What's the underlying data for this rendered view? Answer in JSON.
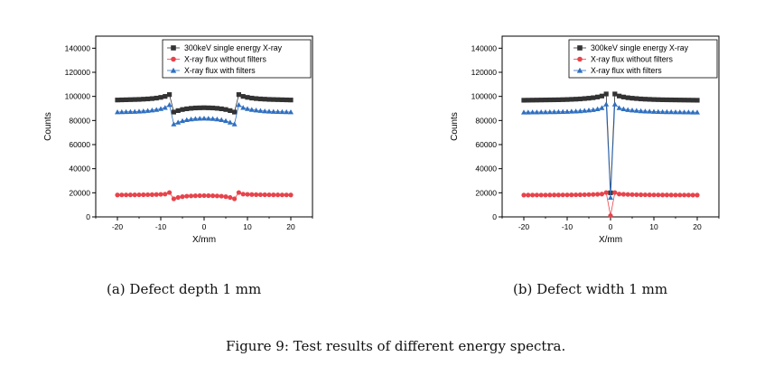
{
  "figure": {
    "caption": "Figure 9: Test results of different energy spectra."
  },
  "panels": {
    "a": {
      "caption": "(a) Defect depth 1 mm"
    },
    "b": {
      "caption": "(b) Defect width 1 mm"
    }
  },
  "chart_data": [
    {
      "type": "line",
      "id": "a",
      "xlabel": "X/mm",
      "ylabel": "Counts",
      "xlim": [
        -25,
        25
      ],
      "ylim": [
        0,
        150000
      ],
      "xticks": [
        -20,
        -10,
        0,
        10,
        20
      ],
      "yticks": [
        0,
        20000,
        40000,
        60000,
        80000,
        100000,
        120000,
        140000
      ],
      "legend_position": "top-right",
      "series": [
        {
          "name": "300keV single energy X-ray",
          "color": "#333333",
          "marker": "square",
          "x": [
            -20,
            -19,
            -18,
            -17,
            -16,
            -15,
            -14,
            -13,
            -12,
            -11,
            -10,
            -9,
            -8,
            -7,
            -6,
            -5,
            -4,
            -3,
            -2,
            -1,
            0,
            1,
            2,
            3,
            4,
            5,
            6,
            7,
            8,
            9,
            10,
            11,
            12,
            13,
            14,
            15,
            16,
            17,
            18,
            19,
            20
          ],
          "y": [
            97000,
            97100,
            97200,
            97300,
            97400,
            97500,
            97700,
            97900,
            98200,
            98600,
            99200,
            100000,
            101500,
            87000,
            88200,
            89100,
            89700,
            90100,
            90400,
            90500,
            90600,
            90500,
            90400,
            90100,
            89700,
            89100,
            88200,
            87000,
            101500,
            100000,
            99200,
            98600,
            98200,
            97900,
            97700,
            97500,
            97400,
            97300,
            97200,
            97100,
            97000
          ]
        },
        {
          "name": "X-ray flux without filters",
          "color": "#e8434b",
          "marker": "circle",
          "x": [
            -20,
            -19,
            -18,
            -17,
            -16,
            -15,
            -14,
            -13,
            -12,
            -11,
            -10,
            -9,
            -8,
            -7,
            -6,
            -5,
            -4,
            -3,
            -2,
            -1,
            0,
            1,
            2,
            3,
            4,
            5,
            6,
            7,
            8,
            9,
            10,
            11,
            12,
            13,
            14,
            15,
            16,
            17,
            18,
            19,
            20
          ],
          "y": [
            18200,
            18220,
            18240,
            18260,
            18290,
            18320,
            18360,
            18410,
            18480,
            18570,
            18700,
            18900,
            20200,
            15000,
            16100,
            16800,
            17200,
            17400,
            17550,
            17600,
            17650,
            17600,
            17550,
            17400,
            17200,
            16800,
            16100,
            15000,
            20200,
            18900,
            18700,
            18570,
            18480,
            18410,
            18360,
            18320,
            18290,
            18260,
            18240,
            18220,
            18200
          ]
        },
        {
          "name": "X-ray flux with filters",
          "color": "#2f6fc0",
          "marker": "triangle",
          "x": [
            -20,
            -19,
            -18,
            -17,
            -16,
            -15,
            -14,
            -13,
            -12,
            -11,
            -10,
            -9,
            -8,
            -7,
            -6,
            -5,
            -4,
            -3,
            -2,
            -1,
            0,
            1,
            2,
            3,
            4,
            5,
            6,
            7,
            8,
            9,
            10,
            11,
            12,
            13,
            14,
            15,
            16,
            17,
            18,
            19,
            20
          ],
          "y": [
            87000,
            87100,
            87200,
            87300,
            87400,
            87600,
            87800,
            88100,
            88500,
            89000,
            89700,
            90700,
            93000,
            77000,
            78500,
            79700,
            80500,
            81100,
            81500,
            81700,
            81800,
            81700,
            81500,
            81100,
            80500,
            79700,
            78500,
            77000,
            93000,
            90700,
            89700,
            89000,
            88500,
            88100,
            87800,
            87600,
            87400,
            87300,
            87200,
            87100,
            87000
          ]
        }
      ]
    },
    {
      "type": "line",
      "id": "b",
      "xlabel": "X/mm",
      "ylabel": "Counts",
      "xlim": [
        -25,
        25
      ],
      "ylim": [
        0,
        150000
      ],
      "xticks": [
        -20,
        -10,
        0,
        10,
        20
      ],
      "yticks": [
        0,
        20000,
        40000,
        60000,
        80000,
        100000,
        120000,
        140000
      ],
      "legend_position": "top-right",
      "series": [
        {
          "name": "300keV single energy X-ray",
          "color": "#333333",
          "marker": "square",
          "x": [
            -20,
            -19,
            -18,
            -17,
            -16,
            -15,
            -14,
            -13,
            -12,
            -11,
            -10,
            -9,
            -8,
            -7,
            -6,
            -5,
            -4,
            -3,
            -2,
            -1,
            0,
            1,
            2,
            3,
            4,
            5,
            6,
            7,
            8,
            9,
            10,
            11,
            12,
            13,
            14,
            15,
            16,
            17,
            18,
            19,
            20
          ],
          "y": [
            96800,
            96850,
            96900,
            96950,
            97000,
            97050,
            97100,
            97150,
            97200,
            97300,
            97400,
            97550,
            97700,
            97900,
            98200,
            98500,
            98900,
            99500,
            100300,
            102000,
            20000,
            102000,
            100300,
            99500,
            98900,
            98500,
            98200,
            97900,
            97700,
            97550,
            97400,
            97300,
            97200,
            97150,
            97100,
            97050,
            97000,
            96950,
            96900,
            96850,
            96800
          ]
        },
        {
          "name": "X-ray flux without filters",
          "color": "#e8434b",
          "marker": "circle",
          "x": [
            -20,
            -19,
            -18,
            -17,
            -16,
            -15,
            -14,
            -13,
            -12,
            -11,
            -10,
            -9,
            -8,
            -7,
            -6,
            -5,
            -4,
            -3,
            -2,
            -1,
            0,
            1,
            2,
            3,
            4,
            5,
            6,
            7,
            8,
            9,
            10,
            11,
            12,
            13,
            14,
            15,
            16,
            17,
            18,
            19,
            20
          ],
          "y": [
            18100,
            18110,
            18120,
            18130,
            18140,
            18150,
            18160,
            18180,
            18200,
            18220,
            18250,
            18280,
            18320,
            18370,
            18430,
            18500,
            18600,
            18750,
            18950,
            20200,
            1000,
            20200,
            18950,
            18750,
            18600,
            18500,
            18430,
            18370,
            18320,
            18280,
            18250,
            18220,
            18200,
            18180,
            18160,
            18150,
            18140,
            18130,
            18120,
            18110,
            18100
          ]
        },
        {
          "name": "X-ray flux with filters",
          "color": "#2f6fc0",
          "marker": "triangle",
          "x": [
            -20,
            -19,
            -18,
            -17,
            -16,
            -15,
            -14,
            -13,
            -12,
            -11,
            -10,
            -9,
            -8,
            -7,
            -6,
            -5,
            -4,
            -3,
            -2,
            -1,
            0,
            1,
            2,
            3,
            4,
            5,
            6,
            7,
            8,
            9,
            10,
            11,
            12,
            13,
            14,
            15,
            16,
            17,
            18,
            19,
            20
          ],
          "y": [
            86800,
            86850,
            86900,
            86950,
            87000,
            87050,
            87100,
            87150,
            87200,
            87300,
            87400,
            87550,
            87700,
            87900,
            88200,
            88500,
            88900,
            89500,
            90500,
            93500,
            16000,
            93500,
            90500,
            89500,
            88900,
            88500,
            88200,
            87900,
            87700,
            87550,
            87400,
            87300,
            87200,
            87150,
            87100,
            87050,
            87000,
            86950,
            86900,
            86850,
            86800
          ]
        }
      ]
    }
  ]
}
